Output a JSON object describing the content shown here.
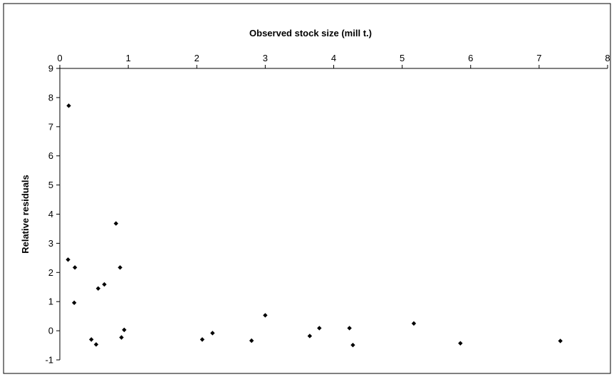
{
  "chart_data": {
    "type": "scatter",
    "title": "",
    "xlabel": "Observed stock size (mill t.)",
    "ylabel": "Relative residuals",
    "xlim": [
      0,
      8
    ],
    "ylim": [
      -1,
      9
    ],
    "x_ticks": [
      "0",
      "1",
      "2",
      "3",
      "4",
      "5",
      "6",
      "7",
      "8"
    ],
    "y_ticks": [
      "-1",
      "0",
      "1",
      "2",
      "3",
      "4",
      "5",
      "6",
      "7",
      "8",
      "9"
    ],
    "x_axis_position": "top",
    "grid": false,
    "legend": "none",
    "marker": "diamond",
    "marker_color": "#000000",
    "series": [
      {
        "x": [
          0.13,
          0.12,
          0.22,
          0.21,
          0.46,
          0.53,
          0.56,
          0.65,
          0.82,
          0.88,
          0.9,
          0.94,
          2.08,
          2.23,
          2.8,
          3.0,
          3.65,
          3.79,
          4.23,
          4.28,
          5.17,
          5.85,
          7.31
        ],
        "y": [
          7.72,
          2.44,
          2.17,
          0.96,
          -0.3,
          -0.47,
          1.45,
          1.59,
          3.68,
          2.17,
          -0.23,
          0.03,
          -0.3,
          -0.08,
          -0.34,
          0.53,
          -0.18,
          0.09,
          0.09,
          -0.49,
          0.25,
          -0.43,
          -0.35
        ]
      }
    ]
  }
}
